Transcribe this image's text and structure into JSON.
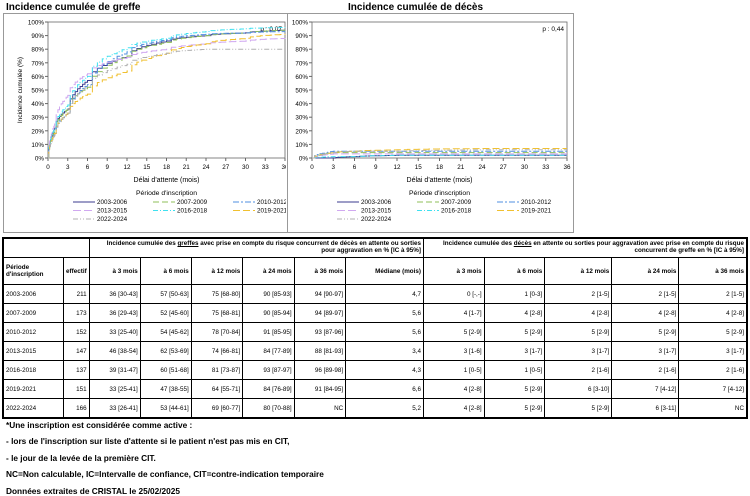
{
  "chart_data": [
    {
      "type": "line",
      "title": "Incidence cumulée de greffe",
      "pvalue": "p : 0,07",
      "xlabel": "Délai d'attente (mois)",
      "ylabel": "Incidence cumulée (%)",
      "xlim": [
        0,
        36
      ],
      "ylim": [
        0,
        100
      ],
      "xticks": [
        "0",
        "3",
        "6",
        "9",
        "12",
        "15",
        "18",
        "21",
        "24",
        "27",
        "30",
        "33",
        "36"
      ],
      "yticks": [
        "0%",
        "10%",
        "20%",
        "30%",
        "40%",
        "50%",
        "60%",
        "70%",
        "80%",
        "90%",
        "100%"
      ],
      "legend_title": "Période d'inscription",
      "x": [
        0,
        1,
        3,
        6,
        12,
        18,
        24,
        30,
        36
      ],
      "series": [
        {
          "name": "2003-2006",
          "color": "#3b3b8f",
          "dash": "",
          "values": [
            0,
            22,
            36,
            57,
            75,
            86,
            90,
            92,
            94
          ]
        },
        {
          "name": "2007-2009",
          "color": "#8fbf5a",
          "dash": "6,3",
          "values": [
            0,
            20,
            36,
            52,
            75,
            85,
            90,
            92,
            94
          ]
        },
        {
          "name": "2010-2012",
          "color": "#4f8fe0",
          "dash": "6,2,2,2",
          "values": [
            0,
            18,
            33,
            54,
            78,
            87,
            91,
            92,
            93
          ]
        },
        {
          "name": "2013-2015",
          "color": "#d0a8f0",
          "dash": "8,3",
          "values": [
            0,
            25,
            46,
            62,
            74,
            80,
            84,
            86,
            88
          ]
        },
        {
          "name": "2016-2018",
          "color": "#40e0f0",
          "dash": "5,2,1,2",
          "values": [
            0,
            22,
            39,
            60,
            81,
            88,
            93,
            95,
            96
          ]
        },
        {
          "name": "2019-2021",
          "color": "#f0c030",
          "dash": "7,3",
          "values": [
            0,
            18,
            33,
            47,
            64,
            77,
            84,
            88,
            91
          ]
        },
        {
          "name": "2022-2024",
          "color": "#b0b0b0",
          "dash": "5,2,1,2,1,2",
          "values": [
            0,
            17,
            33,
            53,
            69,
            77,
            80,
            80,
            80
          ]
        }
      ]
    },
    {
      "type": "line",
      "title": "Incidence cumulée de décès",
      "pvalue": "p : 0,44",
      "xlabel": "Délai d'attente (mois)",
      "ylabel": "Incidence cumulée (%)",
      "xlim": [
        0,
        36
      ],
      "ylim": [
        0,
        100
      ],
      "xticks": [
        "0",
        "3",
        "6",
        "9",
        "12",
        "15",
        "18",
        "21",
        "24",
        "27",
        "30",
        "33",
        "36"
      ],
      "yticks": [
        "0%",
        "10%",
        "20%",
        "30%",
        "40%",
        "50%",
        "60%",
        "70%",
        "80%",
        "90%",
        "100%"
      ],
      "legend_title": "Période d'inscription",
      "x": [
        0,
        3,
        6,
        12,
        24,
        36
      ],
      "series": [
        {
          "name": "2003-2006",
          "color": "#3b3b8f",
          "dash": "",
          "values": [
            0,
            0,
            1,
            2,
            2,
            2
          ]
        },
        {
          "name": "2007-2009",
          "color": "#8fbf5a",
          "dash": "6,3",
          "values": [
            0,
            4,
            4,
            4,
            4,
            4
          ]
        },
        {
          "name": "2010-2012",
          "color": "#4f8fe0",
          "dash": "6,2,2,2",
          "values": [
            0,
            5,
            5,
            5,
            5,
            5
          ]
        },
        {
          "name": "2013-2015",
          "color": "#d0a8f0",
          "dash": "8,3",
          "values": [
            0,
            3,
            3,
            3,
            3,
            3
          ]
        },
        {
          "name": "2016-2018",
          "color": "#40e0f0",
          "dash": "5,2,1,2",
          "values": [
            0,
            1,
            1,
            2,
            2,
            2
          ]
        },
        {
          "name": "2019-2021",
          "color": "#f0c030",
          "dash": "7,3",
          "values": [
            0,
            4,
            5,
            6,
            7,
            7
          ]
        },
        {
          "name": "2022-2024",
          "color": "#b0b0b0",
          "dash": "5,2,1,2,1,2",
          "values": [
            0,
            4,
            5,
            5,
            6,
            6
          ]
        }
      ]
    }
  ],
  "table": {
    "grp1_pre": "Incidence cumulée des ",
    "grp1_u": "greffes",
    "grp1_post": " avec prise en compte du risque concurrent de décès en attente ou sorties pour aggravation en % [IC à 95%]",
    "grp2_pre": "Incidence cumulée des ",
    "grp2_u": "décès",
    "grp2_post": " en attente ou sorties pour aggravation avec prise en compte du risque concurrent de greffe en % [IC à 95%]",
    "headers": [
      "Période d'inscription",
      "effectif",
      "à 3 mois",
      "à 6 mois",
      "à 12 mois",
      "à 24 mois",
      "à 36 mois",
      "Médiane (mois)",
      "à 3 mois",
      "à 6 mois",
      "à 12 mois",
      "à 24 mois",
      "à 36 mois"
    ],
    "rows": [
      [
        "2003-2006",
        "211",
        "36 [30-43]",
        "57 [50-63]",
        "75 [68-80]",
        "90 [85-93]",
        "94 [90-97]",
        "4,7",
        "0 [-,-]",
        "1 [0-3]",
        "2 [1-5]",
        "2 [1-5]",
        "2 [1-5]"
      ],
      [
        "2007-2009",
        "173",
        "36 [29-43]",
        "52 [45-60]",
        "75 [68-81]",
        "90 [85-94]",
        "94 [89-97]",
        "5,6",
        "4 [1-7]",
        "4 [2-8]",
        "4 [2-8]",
        "4 [2-8]",
        "4 [2-8]"
      ],
      [
        "2010-2012",
        "152",
        "33 [25-40]",
        "54 [45-62]",
        "78 [70-84]",
        "91 [85-95]",
        "93 [87-96]",
        "5,6",
        "5 [2-9]",
        "5 [2-9]",
        "5 [2-9]",
        "5 [2-9]",
        "5 [2-9]"
      ],
      [
        "2013-2015",
        "147",
        "46 [38-54]",
        "62 [53-69]",
        "74 [66-81]",
        "84 [77-89]",
        "88 [81-93]",
        "3,4",
        "3 [1-6]",
        "3 [1-7]",
        "3 [1-7]",
        "3 [1-7]",
        "3 [1-7]"
      ],
      [
        "2016-2018",
        "137",
        "39 [31-47]",
        "60 [51-68]",
        "81 [73-87]",
        "93 [87-97]",
        "96 [89-98]",
        "4,3",
        "1 [0-5]",
        "1 [0-5]",
        "2 [1-6]",
        "2 [1-6]",
        "2 [1-6]"
      ],
      [
        "2019-2021",
        "151",
        "33 [25-41]",
        "47 [38-55]",
        "64 [55-71]",
        "84 [76-89]",
        "91 [84-95]",
        "6,6",
        "4 [2-8]",
        "5 [2-9]",
        "6 [3-10]",
        "7 [4-12]",
        "7 [4-12]"
      ],
      [
        "2022-2024",
        "166",
        "33 [26-41]",
        "53 [44-61]",
        "69 [60-77]",
        "80 [70-88]",
        "NC",
        "5,2",
        "4 [2-8]",
        "5 [2-9]",
        "5 [2-9]",
        "6 [3-11]",
        "NC"
      ]
    ]
  },
  "notes": [
    "*Une inscription est considérée comme active :",
    "- lors de l'inscription sur liste d'attente si le patient n'est pas mis en CIT,",
    "- le jour de la levée de la première CIT.",
    "NC=Non calculable, IC=Intervalle de confiance, CIT=contre-indication temporaire",
    "Données extraites de CRISTAL le 25/02/2025"
  ]
}
